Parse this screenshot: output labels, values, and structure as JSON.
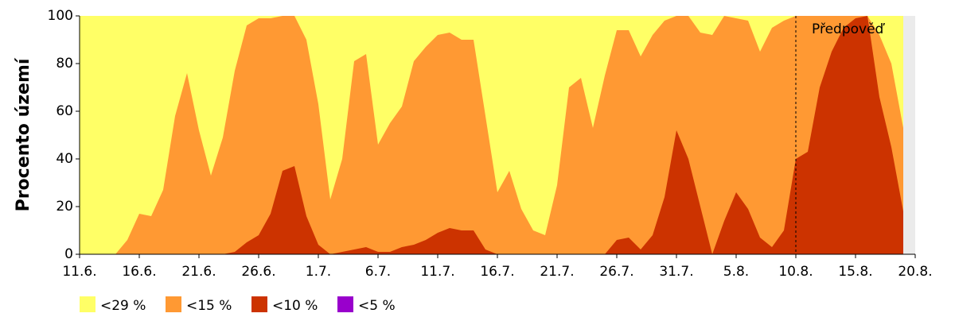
{
  "chart_data": {
    "type": "area",
    "y_label": "Procento území",
    "categories": [
      "11.6.",
      null,
      null,
      null,
      null,
      "16.6.",
      null,
      null,
      null,
      null,
      "21.6.",
      null,
      null,
      null,
      null,
      "26.6.",
      null,
      null,
      null,
      null,
      "1.7.",
      null,
      null,
      null,
      null,
      "6.7.",
      null,
      null,
      null,
      null,
      "11.7.",
      null,
      null,
      null,
      null,
      "16.7.",
      null,
      null,
      null,
      null,
      "21.7.",
      null,
      null,
      null,
      null,
      "26.7.",
      null,
      null,
      null,
      null,
      "31.7.",
      null,
      null,
      null,
      null,
      "5.8.",
      null,
      null,
      null,
      null,
      "10.8.",
      null,
      null,
      null,
      null,
      "15.8.",
      null,
      null,
      null,
      null,
      "20.8."
    ],
    "series": [
      {
        "name": "<29 %",
        "color": "#ffff66",
        "values": [
          100,
          100,
          100,
          100,
          100,
          100,
          100,
          100,
          100,
          100,
          100,
          100,
          100,
          100,
          100,
          100,
          100,
          100,
          100,
          100,
          100,
          100,
          100,
          100,
          100,
          100,
          100,
          100,
          100,
          100,
          100,
          100,
          100,
          100,
          100,
          100,
          100,
          100,
          100,
          100,
          100,
          100,
          100,
          100,
          100,
          100,
          100,
          100,
          100,
          100,
          100,
          100,
          100,
          100,
          100,
          100,
          100,
          100,
          100,
          100,
          100,
          100,
          100,
          100,
          100,
          100,
          100,
          100,
          100,
          100,
          null
        ]
      },
      {
        "name": "<15 %",
        "color": "#ff9933",
        "values": [
          0,
          0,
          0,
          0,
          6,
          17,
          16,
          27,
          58,
          76,
          52,
          33,
          49,
          77,
          96,
          99,
          99,
          100,
          100,
          90,
          63,
          23,
          40,
          81,
          84,
          46,
          55,
          62,
          81,
          87,
          92,
          93,
          90,
          90,
          58,
          26,
          35,
          19,
          10,
          8,
          29,
          70,
          74,
          53,
          75,
          94,
          94,
          83,
          92,
          98,
          100,
          100,
          93,
          92,
          100,
          99,
          98,
          85,
          95,
          98,
          100,
          100,
          100,
          100,
          100,
          100,
          100,
          92,
          80,
          53,
          null
        ]
      },
      {
        "name": "<10 %",
        "color": "#cc3300",
        "values": [
          0,
          0,
          0,
          0,
          0,
          0,
          0,
          0,
          0,
          0,
          0,
          0,
          0,
          1,
          5,
          8,
          17,
          35,
          37,
          16,
          4,
          0,
          1,
          2,
          3,
          1,
          1,
          3,
          4,
          6,
          9,
          11,
          10,
          10,
          2,
          0,
          0,
          0,
          0,
          0,
          0,
          0,
          0,
          0,
          0,
          6,
          7,
          2,
          8,
          24,
          52,
          40,
          20,
          0,
          14,
          26,
          19,
          7,
          3,
          10,
          40,
          43,
          70,
          85,
          95,
          99,
          100,
          66,
          45,
          18,
          null
        ]
      },
      {
        "name": "<5 %",
        "color": "#9900cc",
        "values": [
          0,
          0,
          0,
          0,
          0,
          0,
          0,
          0,
          0,
          0,
          0,
          0,
          0,
          0,
          0,
          0,
          0,
          0,
          0,
          0,
          0,
          0,
          0,
          0,
          0,
          0,
          0,
          0,
          0,
          0,
          0,
          0,
          0,
          0,
          0,
          0,
          0,
          0,
          0,
          0,
          0,
          0,
          0,
          0,
          0,
          0,
          0,
          0,
          0,
          0,
          0,
          0,
          0,
          0,
          0,
          0,
          0,
          0,
          0,
          0,
          0,
          0,
          0,
          0,
          0,
          0,
          0,
          0,
          0,
          0,
          null
        ]
      }
    ],
    "ylim": [
      0,
      100
    ],
    "yticks": [
      0,
      20,
      40,
      60,
      80,
      100
    ],
    "annotation": {
      "text": "Předpověď",
      "at": "10.8."
    }
  }
}
